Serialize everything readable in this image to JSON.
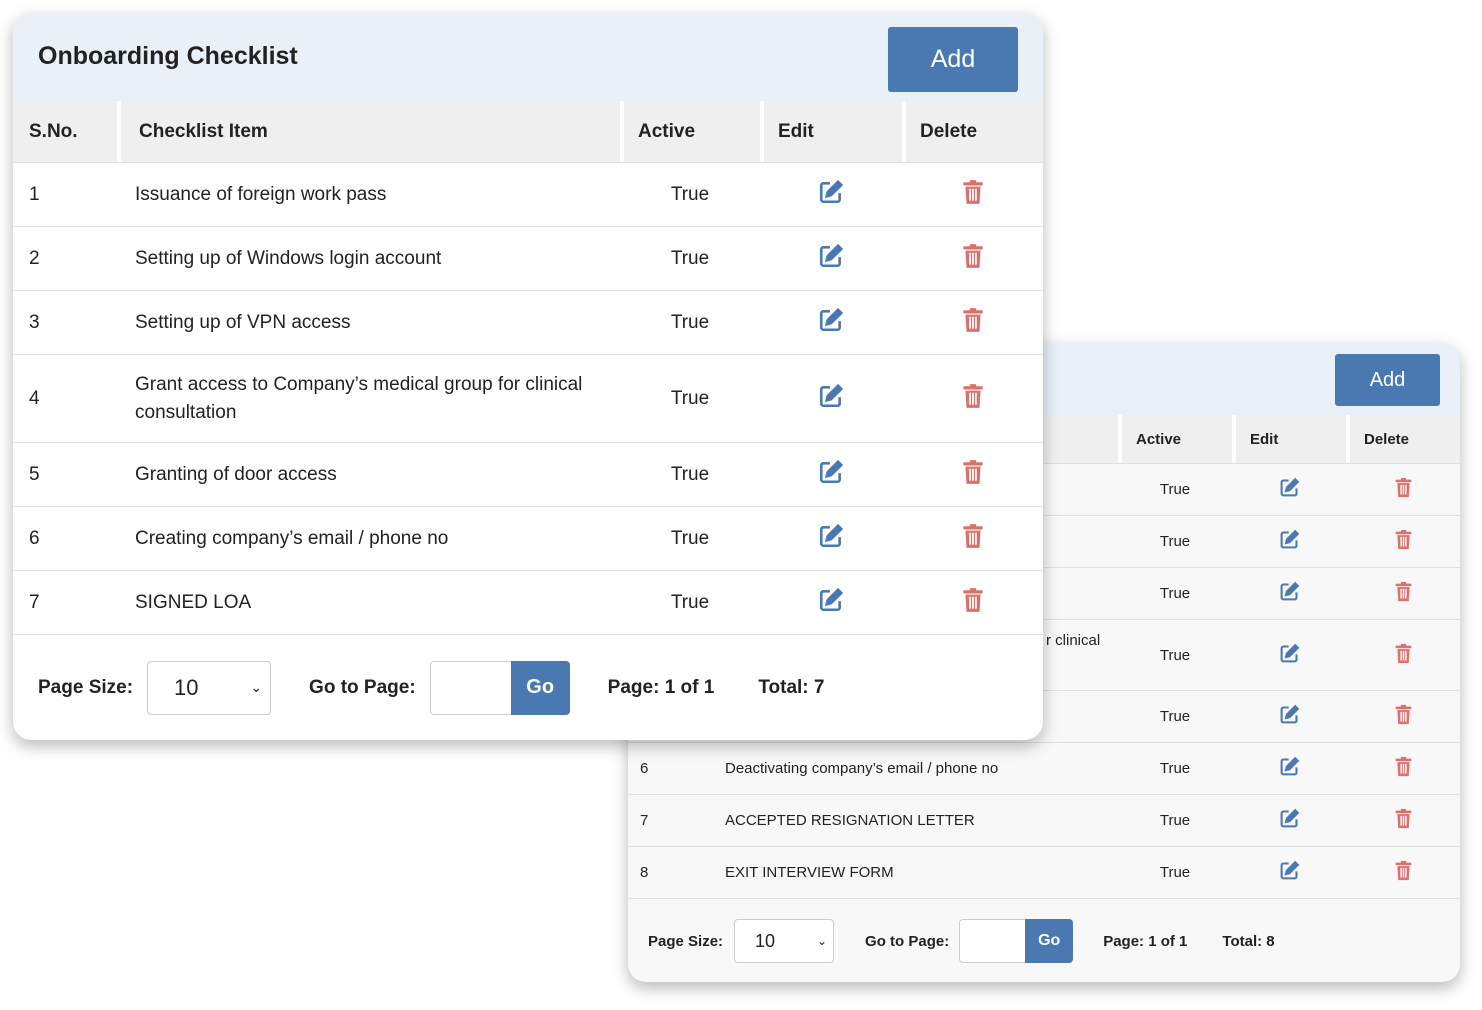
{
  "front": {
    "title": "Onboarding Checklist",
    "add_label": "Add",
    "columns": [
      "S.No.",
      "Checklist Item",
      "Active",
      "Edit",
      "Delete"
    ],
    "rows": [
      {
        "sno": "1",
        "item": "Issuance of foreign work pass",
        "active": "True"
      },
      {
        "sno": "2",
        "item": "Setting up of Windows login account",
        "active": "True"
      },
      {
        "sno": "3",
        "item": "Setting up of VPN access",
        "active": "True"
      },
      {
        "sno": "4",
        "item": "Grant access to Company’s medical group for clinical consultation",
        "active": "True"
      },
      {
        "sno": "5",
        "item": "Granting of door access",
        "active": "True"
      },
      {
        "sno": "6",
        "item": "Creating company’s email / phone no",
        "active": "True"
      },
      {
        "sno": "7",
        "item": "SIGNED LOA",
        "active": "True"
      }
    ],
    "footer": {
      "page_size_label": "Page Size:",
      "page_size": "10",
      "go_to_label": "Go to Page:",
      "go_label": "Go",
      "page_info": "Page: 1 of 1",
      "total": "Total: 7"
    }
  },
  "back": {
    "add_label": "Add",
    "columns": [
      "Active",
      "Edit",
      "Delete"
    ],
    "rows": [
      {
        "sno": "",
        "item": "",
        "active": "True"
      },
      {
        "sno": "",
        "item": "",
        "active": "True"
      },
      {
        "sno": "",
        "item": "",
        "active": "True"
      },
      {
        "sno": "",
        "item": "r clinical",
        "active": "True"
      },
      {
        "sno": "",
        "item": "",
        "active": "True"
      },
      {
        "sno": "6",
        "item": "Deactivating company’s email / phone no",
        "active": "True"
      },
      {
        "sno": "7",
        "item": "ACCEPTED RESIGNATION LETTER",
        "active": "True"
      },
      {
        "sno": "8",
        "item": "EXIT INTERVIEW FORM",
        "active": "True"
      }
    ],
    "footer": {
      "page_size_label": "Page Size:",
      "page_size": "10",
      "go_to_label": "Go to Page:",
      "go_label": "Go",
      "page_info": "Page: 1 of 1",
      "total": "Total: 8"
    }
  },
  "colors": {
    "accent": "#4a78b0",
    "delete": "#d9726f",
    "header_bg": "#eaf0f8"
  }
}
